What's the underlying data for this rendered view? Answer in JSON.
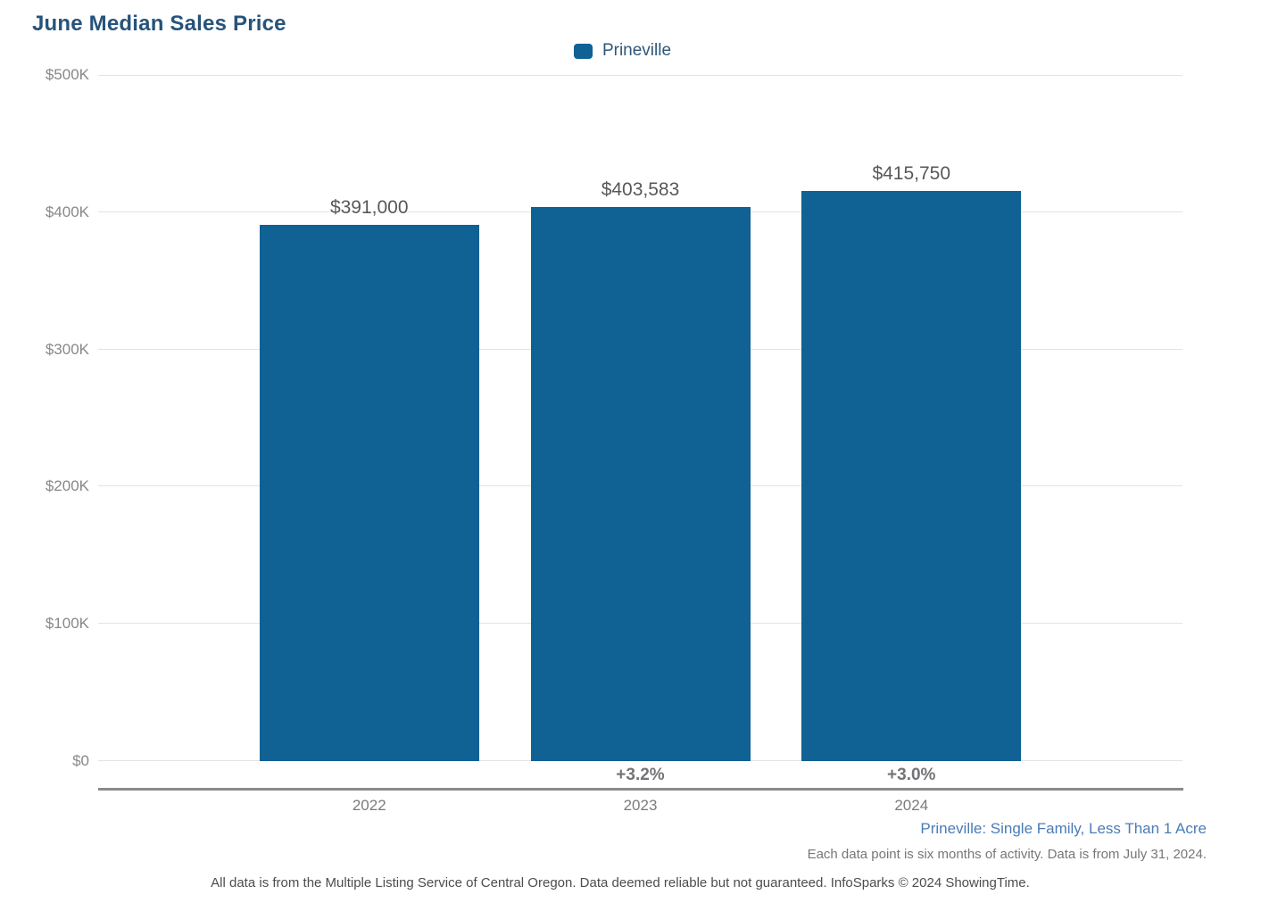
{
  "page": {
    "title": "June Median Sales Price"
  },
  "chart_data": {
    "type": "bar",
    "title": "June Median Sales Price",
    "categories": [
      "2022",
      "2023",
      "2024"
    ],
    "series": [
      {
        "name": "Prineville",
        "values": [
          391000,
          403583,
          415750
        ],
        "color": "#106194"
      }
    ],
    "value_labels": [
      "$391,000",
      "$403,583",
      "$415,750"
    ],
    "pct_change_labels": [
      "",
      "+3.2%",
      "+3.0%"
    ],
    "xlabel": "",
    "ylabel": "",
    "ylim": [
      0,
      500000
    ],
    "ytick_interval": 100000,
    "ytick_labels": [
      "$0",
      "$100K",
      "$200K",
      "$300K",
      "$400K",
      "$500K"
    ],
    "grid": true,
    "legend_position": "top-center"
  },
  "legend": {
    "items": [
      {
        "label": "Prineville",
        "color": "#106194"
      }
    ]
  },
  "footnotes": {
    "filter_description": "Prineville: Single Family, Less Than 1 Acre",
    "data_note": "Each data point is six months of activity. Data is from July 31, 2024.",
    "disclaimer": "All data is from the Multiple Listing Service of Central Oregon. Data deemed reliable but not guaranteed. InfoSparks © 2024 ShowingTime."
  },
  "colors": {
    "bar": "#106194",
    "title_text": "#27537B",
    "legend_text": "#2F5778",
    "gridline": "#E3E3E4",
    "axis_line": "#8A8A8B",
    "value_label": "#57585A",
    "pct_label": "#737477",
    "tick_label": "#87888B",
    "footnote_blue": "#4A7CB7",
    "footnote_gray": "#777779",
    "disclaimer_gray": "#4D4D4F"
  }
}
